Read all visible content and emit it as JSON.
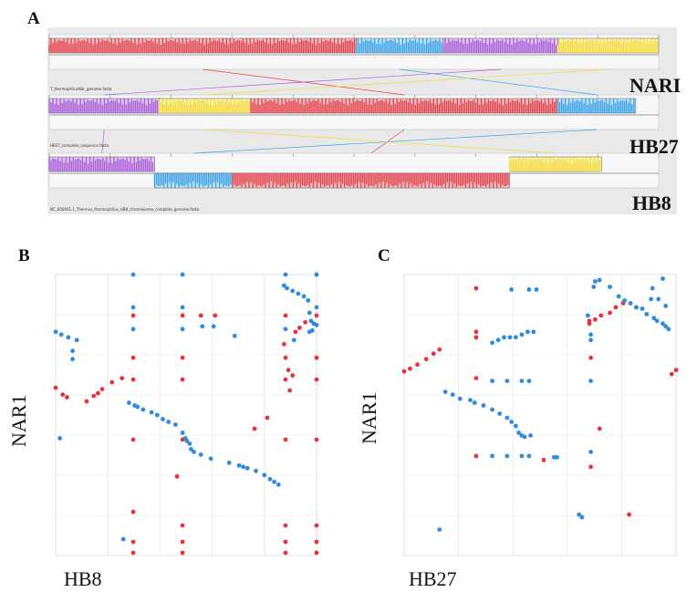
{
  "panel_a": {
    "letter": "A",
    "genomes": [
      {
        "label": "NARI",
        "file": "T_thermophilusNar_genome.fasta",
        "blocks": [
          {
            "color": "red",
            "start": 0,
            "end": 1340000,
            "strand": 1
          },
          {
            "color": "blue",
            "start": 1340000,
            "end": 1720000,
            "strand": 1
          },
          {
            "color": "purple",
            "start": 1720000,
            "end": 2220000,
            "strand": 1
          },
          {
            "color": "yellow",
            "start": 2220000,
            "end": 2660000,
            "strand": 1
          }
        ]
      },
      {
        "label": "HB27",
        "file": "HB27_complete_sequence.fasta",
        "blocks": [
          {
            "color": "purple",
            "start": 0,
            "end": 480000,
            "strand": 1
          },
          {
            "color": "yellow",
            "start": 480000,
            "end": 880000,
            "strand": 1
          },
          {
            "color": "red",
            "start": 880000,
            "end": 2220000,
            "strand": 1
          },
          {
            "color": "blue",
            "start": 2220000,
            "end": 2560000,
            "strand": 1
          }
        ]
      },
      {
        "label": "HB8",
        "file": "NC_006461.1_Thermus_thermophilus_HB8_chromosome_complete_genome.fasta",
        "blocks": [
          {
            "color": "purple",
            "start": 0,
            "end": 460000,
            "strand": 1
          },
          {
            "color": "blue",
            "start": 460000,
            "end": 800000,
            "strand": -1
          },
          {
            "color": "red",
            "start": 800000,
            "end": 2010000,
            "strand": -1
          },
          {
            "color": "yellow",
            "start": 2010000,
            "end": 2410000,
            "strand": 1
          }
        ]
      }
    ]
  },
  "panel_b": {
    "letter": "B",
    "ylabel": "NAR1",
    "xlabel": "HB8",
    "xmax": 1850000,
    "ymax": 2060000,
    "forward": [
      [
        0,
        1230000
      ],
      [
        50000,
        1180000
      ],
      [
        80000,
        1160000
      ],
      [
        220000,
        1130000
      ],
      [
        270000,
        1170000
      ],
      [
        300000,
        1190000
      ],
      [
        330000,
        1220000
      ],
      [
        400000,
        1270000
      ],
      [
        470000,
        1300000
      ],
      [
        860000,
        580000
      ],
      [
        1410000,
        930000
      ],
      [
        1500000,
        1010000
      ],
      [
        1620000,
        1550000
      ],
      [
        1700000,
        1640000
      ],
      [
        1730000,
        1670000
      ],
      [
        1770000,
        1710000
      ],
      [
        550000,
        320000
      ],
      [
        900000,
        220000
      ],
      [
        1630000,
        220000
      ],
      [
        1850000,
        220000
      ],
      [
        550000,
        850000
      ],
      [
        900000,
        850000
      ],
      [
        1630000,
        850000
      ],
      [
        1850000,
        850000
      ],
      [
        550000,
        1290000
      ],
      [
        900000,
        1290000
      ],
      [
        1630000,
        1290000
      ],
      [
        1850000,
        1290000
      ],
      [
        550000,
        1450000
      ],
      [
        900000,
        1450000
      ],
      [
        1630000,
        1450000
      ],
      [
        1850000,
        1450000
      ],
      [
        550000,
        1760000
      ],
      [
        900000,
        1760000
      ],
      [
        1630000,
        1760000
      ],
      [
        1850000,
        1760000
      ],
      [
        1030000,
        1760000
      ],
      [
        1130000,
        1760000
      ],
      [
        1650000,
        1360000
      ],
      [
        1660000,
        1210000
      ],
      [
        1680000,
        1320000
      ],
      [
        550000,
        100000
      ],
      [
        900000,
        100000
      ],
      [
        1630000,
        100000
      ],
      [
        1850000,
        100000
      ],
      [
        550000,
        20000
      ],
      [
        900000,
        20000
      ],
      [
        1630000,
        20000
      ],
      [
        1850000,
        20000
      ]
    ],
    "reverse": [
      [
        0,
        1640000
      ],
      [
        40000,
        1620000
      ],
      [
        90000,
        1600000
      ],
      [
        150000,
        1580000
      ],
      [
        30000,
        860000
      ],
      [
        520000,
        1120000
      ],
      [
        560000,
        1100000
      ],
      [
        580000,
        1090000
      ],
      [
        620000,
        1070000
      ],
      [
        680000,
        1050000
      ],
      [
        720000,
        1030000
      ],
      [
        760000,
        1000000
      ],
      [
        800000,
        980000
      ],
      [
        850000,
        960000
      ],
      [
        900000,
        900000
      ],
      [
        920000,
        860000
      ],
      [
        930000,
        840000
      ],
      [
        950000,
        820000
      ],
      [
        960000,
        780000
      ],
      [
        980000,
        760000
      ],
      [
        1030000,
        740000
      ],
      [
        1100000,
        710000
      ],
      [
        1230000,
        680000
      ],
      [
        1300000,
        660000
      ],
      [
        1360000,
        640000
      ],
      [
        1420000,
        620000
      ],
      [
        1480000,
        590000
      ],
      [
        1520000,
        560000
      ],
      [
        1550000,
        540000
      ],
      [
        1580000,
        520000
      ],
      [
        1620000,
        1980000
      ],
      [
        1640000,
        1960000
      ],
      [
        1680000,
        1940000
      ],
      [
        1720000,
        1920000
      ],
      [
        1760000,
        1900000
      ],
      [
        1790000,
        1870000
      ],
      [
        1800000,
        1780000
      ],
      [
        1810000,
        1720000
      ],
      [
        1830000,
        1700000
      ],
      [
        1850000,
        1690000
      ],
      [
        120000,
        1500000
      ],
      [
        120000,
        1440000
      ],
      [
        1330000,
        650000
      ],
      [
        480000,
        120000
      ],
      [
        550000,
        1660000
      ],
      [
        550000,
        1820000
      ],
      [
        900000,
        1660000
      ],
      [
        900000,
        1820000
      ],
      [
        1630000,
        1660000
      ],
      [
        1850000,
        1820000
      ],
      [
        1120000,
        1680000
      ],
      [
        1040000,
        1680000
      ],
      [
        1270000,
        1610000
      ],
      [
        550000,
        2060000
      ],
      [
        900000,
        2060000
      ],
      [
        1630000,
        2060000
      ],
      [
        1850000,
        2060000
      ],
      [
        1690000,
        1580000
      ],
      [
        1800000,
        1640000
      ],
      [
        1820000,
        1650000
      ]
    ]
  },
  "panel_c": {
    "letter": "C",
    "ylabel": "NAR1",
    "xlabel": "HB27",
    "xmax": 1850000,
    "ymax": 2060000,
    "forward": [
      [
        0,
        1350000
      ],
      [
        40000,
        1370000
      ],
      [
        90000,
        1400000
      ],
      [
        150000,
        1440000
      ],
      [
        200000,
        1480000
      ],
      [
        240000,
        1510000
      ],
      [
        1260000,
        1700000
      ],
      [
        1300000,
        1730000
      ],
      [
        1340000,
        1760000
      ],
      [
        1400000,
        1780000
      ],
      [
        1440000,
        1820000
      ],
      [
        1490000,
        1850000
      ],
      [
        1820000,
        1330000
      ],
      [
        1850000,
        1360000
      ],
      [
        1270000,
        1450000
      ],
      [
        1330000,
        930000
      ],
      [
        1530000,
        300000
      ],
      [
        1260000,
        1720000
      ],
      [
        490000,
        730000
      ],
      [
        490000,
        1300000
      ],
      [
        490000,
        1600000
      ],
      [
        490000,
        1640000
      ],
      [
        490000,
        1960000
      ],
      [
        1270000,
        650000
      ],
      [
        950000,
        700000
      ]
    ],
    "reverse": [
      [
        240000,
        190000
      ],
      [
        280000,
        1200000
      ],
      [
        330000,
        1180000
      ],
      [
        380000,
        1150000
      ],
      [
        450000,
        1140000
      ],
      [
        480000,
        1120000
      ],
      [
        540000,
        1100000
      ],
      [
        600000,
        1070000
      ],
      [
        650000,
        1040000
      ],
      [
        700000,
        1010000
      ],
      [
        730000,
        980000
      ],
      [
        760000,
        950000
      ],
      [
        780000,
        900000
      ],
      [
        800000,
        880000
      ],
      [
        820000,
        870000
      ],
      [
        860000,
        880000
      ],
      [
        1020000,
        720000
      ],
      [
        1040000,
        720000
      ],
      [
        1190000,
        300000
      ],
      [
        1210000,
        280000
      ],
      [
        1250000,
        1760000
      ],
      [
        1290000,
        1970000
      ],
      [
        1300000,
        2010000
      ],
      [
        1330000,
        2020000
      ],
      [
        1400000,
        1970000
      ],
      [
        1460000,
        1900000
      ],
      [
        1500000,
        1870000
      ],
      [
        1540000,
        1850000
      ],
      [
        1580000,
        1820000
      ],
      [
        1620000,
        1810000
      ],
      [
        1650000,
        1770000
      ],
      [
        1700000,
        1740000
      ],
      [
        1720000,
        1720000
      ],
      [
        1760000,
        1700000
      ],
      [
        1780000,
        1680000
      ],
      [
        1800000,
        1660000
      ],
      [
        1580000,
        1820000
      ],
      [
        1680000,
        1880000
      ],
      [
        1730000,
        1880000
      ],
      [
        1690000,
        1960000
      ],
      [
        1760000,
        2030000
      ],
      [
        1780000,
        1830000
      ],
      [
        730000,
        1950000
      ],
      [
        850000,
        1950000
      ],
      [
        900000,
        1950000
      ],
      [
        600000,
        1560000
      ],
      [
        640000,
        1580000
      ],
      [
        680000,
        1600000
      ],
      [
        720000,
        1600000
      ],
      [
        760000,
        1600000
      ],
      [
        800000,
        1620000
      ],
      [
        840000,
        1640000
      ],
      [
        880000,
        1640000
      ],
      [
        600000,
        1280000
      ],
      [
        700000,
        1280000
      ],
      [
        800000,
        1280000
      ],
      [
        850000,
        1280000
      ],
      [
        600000,
        730000
      ],
      [
        700000,
        730000
      ],
      [
        800000,
        730000
      ],
      [
        850000,
        730000
      ],
      [
        1270000,
        1280000
      ],
      [
        1270000,
        1580000
      ],
      [
        1270000,
        1620000
      ],
      [
        1270000,
        760000
      ]
    ]
  }
}
